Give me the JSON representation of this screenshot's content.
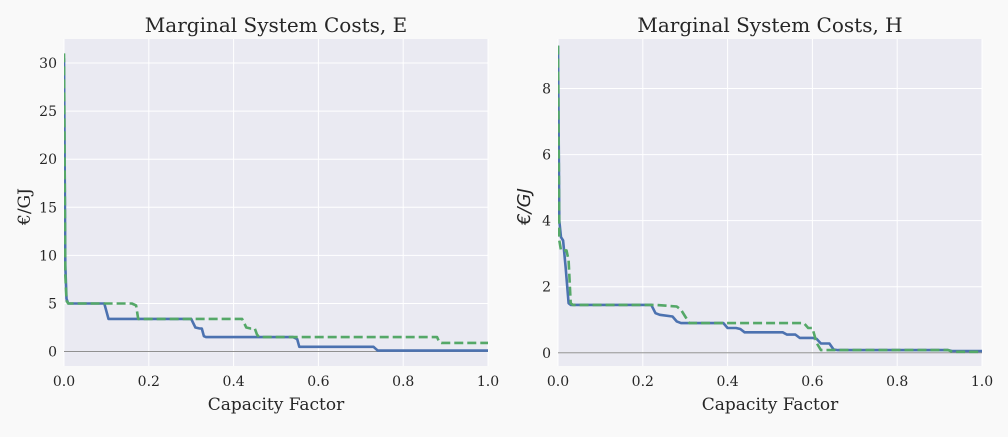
{
  "chart_data": [
    {
      "type": "line",
      "title": "Marginal System Costs, E",
      "xlabel": "Capacity Factor",
      "ylabel": "€/GJ",
      "xlim": [
        0.0,
        1.0
      ],
      "ylim": [
        -1.5,
        32.5
      ],
      "xticks": [
        "0.0",
        "0.2",
        "0.4",
        "0.6",
        "0.8",
        "1.0"
      ],
      "yticks": [
        "0",
        "5",
        "10",
        "15",
        "20",
        "25",
        "30"
      ],
      "grid": true,
      "series": [
        {
          "color": "#4c72b0",
          "style": "solid",
          "x": [
            0.0,
            0.003,
            0.006,
            0.01,
            0.095,
            0.1,
            0.105,
            0.3,
            0.31,
            0.32,
            0.325,
            0.33,
            0.335,
            0.54,
            0.55,
            0.555,
            0.73,
            0.735,
            0.74,
            1.0
          ],
          "y": [
            30.5,
            9.0,
            5.5,
            5.0,
            5.0,
            4.2,
            3.4,
            3.4,
            2.5,
            2.4,
            2.4,
            1.6,
            1.5,
            1.5,
            1.3,
            0.5,
            0.5,
            0.3,
            0.1,
            0.1
          ]
        },
        {
          "color": "#55a868",
          "style": "dashed",
          "x": [
            0.0,
            0.003,
            0.006,
            0.01,
            0.16,
            0.17,
            0.175,
            0.42,
            0.43,
            0.44,
            0.45,
            0.455,
            0.46,
            0.88,
            0.885,
            0.89,
            1.0
          ],
          "y": [
            31.0,
            8.0,
            5.3,
            5.0,
            5.0,
            4.8,
            3.4,
            3.4,
            2.5,
            2.4,
            2.4,
            1.8,
            1.5,
            1.5,
            1.0,
            0.9,
            0.9
          ]
        }
      ]
    },
    {
      "type": "line",
      "title": "Marginal System Costs, H",
      "xlabel": "Capacity Factor",
      "ylabel": "€/GJ",
      "xlim": [
        0.0,
        1.0
      ],
      "ylim": [
        -0.4,
        9.5
      ],
      "xticks": [
        "0.0",
        "0.2",
        "0.4",
        "0.6",
        "0.8",
        "1.0"
      ],
      "yticks": [
        "0",
        "2",
        "4",
        "6",
        "8"
      ],
      "grid": true,
      "series": [
        {
          "color": "#4c72b0",
          "style": "solid",
          "x": [
            0.0,
            0.003,
            0.007,
            0.012,
            0.018,
            0.025,
            0.03,
            0.22,
            0.23,
            0.24,
            0.27,
            0.28,
            0.29,
            0.39,
            0.4,
            0.42,
            0.43,
            0.44,
            0.53,
            0.54,
            0.56,
            0.57,
            0.58,
            0.6,
            0.61,
            0.62,
            0.64,
            0.65,
            0.66,
            0.92,
            0.93,
            1.0
          ],
          "y": [
            9.3,
            4.0,
            3.5,
            3.4,
            2.6,
            1.5,
            1.45,
            1.45,
            1.2,
            1.15,
            1.1,
            0.95,
            0.9,
            0.9,
            0.75,
            0.75,
            0.72,
            0.62,
            0.62,
            0.55,
            0.55,
            0.45,
            0.45,
            0.45,
            0.42,
            0.28,
            0.28,
            0.1,
            0.08,
            0.08,
            0.05,
            0.05
          ]
        },
        {
          "color": "#55a868",
          "style": "dashed",
          "x": [
            0.0,
            0.003,
            0.007,
            0.02,
            0.025,
            0.03,
            0.035,
            0.22,
            0.23,
            0.28,
            0.29,
            0.3,
            0.31,
            0.58,
            0.59,
            0.6,
            0.61,
            0.62,
            0.92,
            0.93,
            1.0
          ],
          "y": [
            9.3,
            3.4,
            3.1,
            3.1,
            2.8,
            1.5,
            1.45,
            1.45,
            1.45,
            1.4,
            1.3,
            1.1,
            0.9,
            0.9,
            0.75,
            0.75,
            0.3,
            0.08,
            0.08,
            0.03,
            0.03
          ]
        }
      ]
    }
  ]
}
